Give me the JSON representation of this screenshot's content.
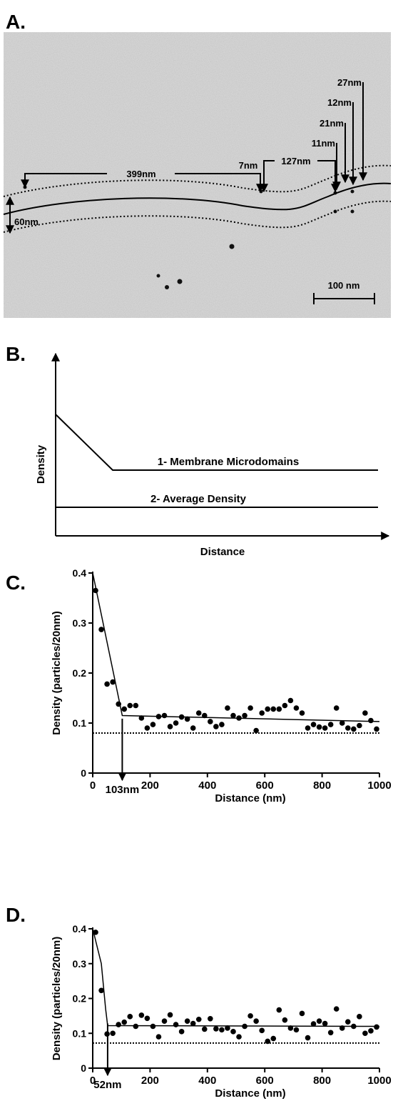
{
  "panel_a": {
    "label": "A.",
    "annotations": [
      "399nm",
      "7nm",
      "127nm",
      "11nm",
      "21nm",
      "12nm",
      "27nm",
      "60nm"
    ],
    "scale_bar": "100 nm"
  },
  "panel_b": {
    "label": "B.",
    "y_label": "Density",
    "x_label": "Distance",
    "line_1": "1- Membrane Microdomains",
    "line_2": "2- Average Density"
  },
  "chart_data": [
    {
      "type": "scatter",
      "panel": "C.",
      "x_label": "Distance (nm)",
      "y_label": "Density (particles/20nm)",
      "xlim": [
        0,
        1000
      ],
      "ylim": [
        0,
        0.4
      ],
      "xticks": [
        0,
        200,
        400,
        600,
        800,
        1000
      ],
      "yticks": [
        0,
        0.1,
        0.2,
        0.3,
        0.4
      ],
      "color": "#000000",
      "x": [
        10,
        30,
        50,
        70,
        90,
        110,
        130,
        150,
        170,
        190,
        210,
        230,
        250,
        270,
        290,
        310,
        330,
        350,
        370,
        390,
        410,
        430,
        450,
        470,
        490,
        510,
        530,
        550,
        570,
        590,
        610,
        630,
        650,
        670,
        690,
        710,
        730,
        750,
        770,
        790,
        810,
        830,
        850,
        870,
        890,
        910,
        930,
        950,
        970,
        990
      ],
      "values": [
        0.365,
        0.287,
        0.178,
        0.182,
        0.138,
        0.128,
        0.135,
        0.135,
        0.11,
        0.09,
        0.097,
        0.113,
        0.115,
        0.093,
        0.1,
        0.112,
        0.108,
        0.09,
        0.12,
        0.115,
        0.103,
        0.093,
        0.097,
        0.13,
        0.115,
        0.11,
        0.115,
        0.13,
        0.085,
        0.12,
        0.128,
        0.128,
        0.128,
        0.135,
        0.145,
        0.13,
        0.12,
        0.09,
        0.097,
        0.092,
        0.09,
        0.097,
        0.13,
        0.1,
        0.09,
        0.088,
        0.095,
        0.12,
        0.105,
        0.088
      ],
      "fit_x": [
        0,
        103,
        1000
      ],
      "fit_values": [
        0.4,
        0.115,
        0.103
      ],
      "average": 0.08,
      "breakpoint": {
        "value": 103,
        "label": "103nm"
      }
    },
    {
      "type": "scatter",
      "panel": "D.",
      "x_label": "Distance (nm)",
      "y_label": "Density (particles/20nm)",
      "xlim": [
        0,
        1000
      ],
      "ylim": [
        0,
        0.4
      ],
      "xticks": [
        0,
        200,
        400,
        600,
        800,
        1000
      ],
      "yticks": [
        0,
        0.1,
        0.2,
        0.3,
        0.4
      ],
      "color": "#000000",
      "x": [
        10,
        30,
        50,
        70,
        90,
        110,
        130,
        150,
        170,
        190,
        210,
        230,
        250,
        270,
        290,
        310,
        330,
        350,
        370,
        390,
        410,
        430,
        450,
        470,
        490,
        510,
        530,
        550,
        570,
        590,
        610,
        630,
        650,
        670,
        690,
        710,
        730,
        750,
        770,
        790,
        810,
        830,
        850,
        870,
        890,
        910,
        930,
        950,
        970,
        990
      ],
      "values": [
        0.39,
        0.223,
        0.098,
        0.1,
        0.125,
        0.132,
        0.148,
        0.12,
        0.152,
        0.143,
        0.12,
        0.09,
        0.135,
        0.153,
        0.125,
        0.105,
        0.135,
        0.128,
        0.14,
        0.112,
        0.142,
        0.113,
        0.11,
        0.115,
        0.105,
        0.09,
        0.12,
        0.15,
        0.135,
        0.108,
        0.077,
        0.085,
        0.167,
        0.138,
        0.115,
        0.11,
        0.157,
        0.087,
        0.127,
        0.135,
        0.128,
        0.102,
        0.17,
        0.115,
        0.133,
        0.12,
        0.148,
        0.1,
        0.107,
        0.118
      ],
      "fit_x": [
        0,
        30,
        45,
        52,
        1000
      ],
      "fit_values": [
        0.4,
        0.3,
        0.17,
        0.122,
        0.12
      ],
      "average": 0.072,
      "breakpoint": {
        "value": 52,
        "label": "52nm"
      }
    }
  ]
}
